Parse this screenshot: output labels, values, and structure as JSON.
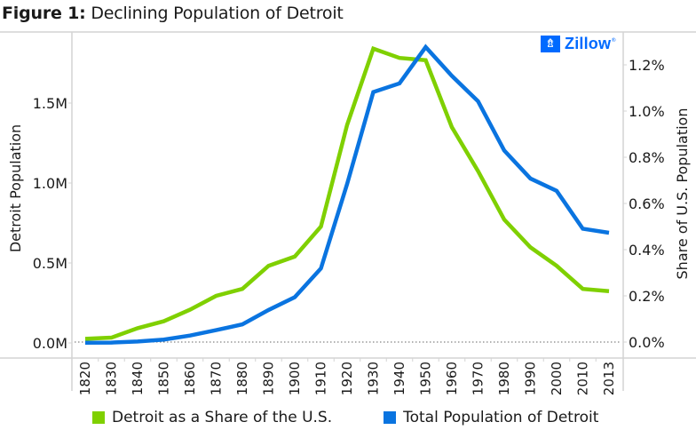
{
  "title": {
    "prefix": "Figure 1:",
    "text": "Declining Population of Detroit"
  },
  "logo": {
    "text": "Zillow",
    "icon": "zillow-logo-icon",
    "color": "#006aff"
  },
  "chart_data": {
    "type": "line",
    "title": "Figure 1: Declining Population of Detroit",
    "xlabel": "",
    "x": [
      "1820",
      "1830",
      "1840",
      "1850",
      "1860",
      "1870",
      "1880",
      "1890",
      "1900",
      "1910",
      "1920",
      "1930",
      "1940",
      "1950",
      "1960",
      "1970",
      "1980",
      "1990",
      "2000",
      "2010",
      "2013"
    ],
    "y_left": {
      "label": "Detroit Population",
      "ylim": [
        0,
        1900000
      ],
      "ticks": [
        0,
        500000,
        1000000,
        1500000
      ],
      "tick_labels": [
        "0.0M",
        "0.5M",
        "1.0M",
        "1.5M"
      ]
    },
    "y_right": {
      "label": "Share of U.S. Population",
      "ylim": [
        0,
        1.3
      ],
      "ticks": [
        0,
        0.2,
        0.4,
        0.6,
        0.8,
        1.0,
        1.2
      ],
      "tick_labels": [
        "0.0%",
        "0.2%",
        "0.4%",
        "0.6%",
        "0.8%",
        "1.0%",
        "1.2%"
      ]
    },
    "series": [
      {
        "name": "Detroit as a Share of the U.S.",
        "axis": "right",
        "color": "#7fd000",
        "unit": "percent",
        "values": [
          0.014,
          0.019,
          0.06,
          0.09,
          0.14,
          0.2,
          0.23,
          0.33,
          0.37,
          0.5,
          0.94,
          1.27,
          1.23,
          1.22,
          0.93,
          0.74,
          0.53,
          0.41,
          0.33,
          0.23,
          0.22
        ]
      },
      {
        "name": "Total Population of Detroit",
        "axis": "left",
        "color": "#0a74e0",
        "unit": "people",
        "values": [
          1400,
          2200,
          9100,
          21000,
          46000,
          80000,
          116000,
          206000,
          286000,
          466000,
          994000,
          1569000,
          1623000,
          1850000,
          1670000,
          1511000,
          1203000,
          1028000,
          951000,
          714000,
          689000
        ]
      }
    ],
    "grid": false,
    "zero_line": "dotted",
    "legend": "bottom"
  }
}
